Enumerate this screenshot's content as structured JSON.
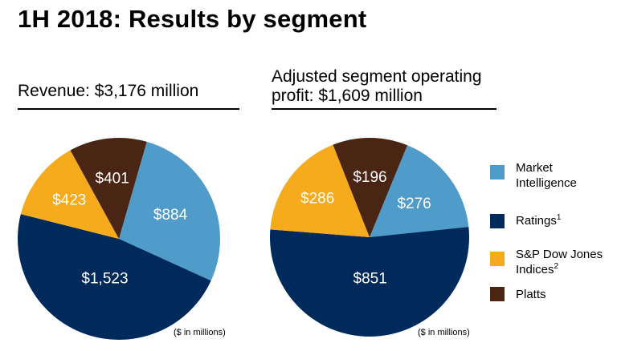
{
  "title": "1H 2018: Results by segment",
  "unit_note": "($ in millions)",
  "legend": [
    {
      "label": "Market Intelligence",
      "sup": "",
      "color": "#4f9bc9"
    },
    {
      "label": "Ratings",
      "sup": "1",
      "color": "#002a5c"
    },
    {
      "label": "S&P Dow Jones Indices",
      "sup": "2",
      "color": "#f5ab1b"
    },
    {
      "label": "Platts",
      "sup": "",
      "color": "#4a2514"
    }
  ],
  "chart_data": [
    {
      "type": "pie",
      "title": "Revenue: $3,176 million",
      "categories": [
        "Market Intelligence",
        "Ratings",
        "S&P Dow Jones Indices",
        "Platts"
      ],
      "values": [
        884,
        1523,
        423,
        401
      ],
      "labels": [
        "$884",
        "$1,523",
        "$423",
        "$401"
      ],
      "colors": [
        "#4f9bc9",
        "#002a5c",
        "#f5ab1b",
        "#4a2514"
      ]
    },
    {
      "type": "pie",
      "title": "Adjusted segment operating profit: $1,609 million",
      "title_lines": [
        "Adjusted segment operating",
        "profit: $1,609 million"
      ],
      "categories": [
        "Market Intelligence",
        "Ratings",
        "S&P Dow Jones Indices",
        "Platts"
      ],
      "values": [
        276,
        851,
        286,
        196
      ],
      "labels": [
        "$276",
        "$851",
        "$286",
        "$196"
      ],
      "colors": [
        "#4f9bc9",
        "#002a5c",
        "#f5ab1b",
        "#4a2514"
      ]
    }
  ]
}
